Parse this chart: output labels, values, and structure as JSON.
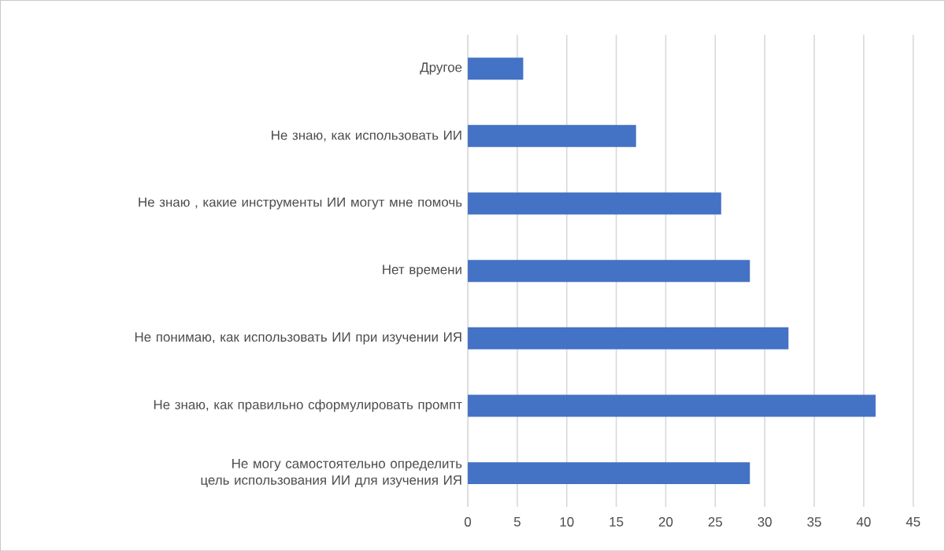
{
  "chart_data": {
    "type": "bar",
    "orientation": "horizontal",
    "categories": [
      "Другое",
      "Не знаю, как использовать ИИ",
      "Не знаю , какие инструменты ИИ могут мне помочь",
      "Нет времени",
      "Не понимаю, как использовать ИИ при изучении ИЯ",
      "Не знаю, как правильно сформулировать промпт",
      "Не могу самостоятельно определить цель использования ИИ для изучения ИЯ"
    ],
    "values": [
      5.6,
      17.0,
      25.6,
      28.5,
      32.4,
      41.2,
      28.5
    ],
    "color": "#4472c4",
    "xlim": [
      0,
      45
    ],
    "xticks": [
      0,
      5,
      10,
      15,
      20,
      25,
      30,
      35,
      40,
      45
    ],
    "grid": "x"
  }
}
